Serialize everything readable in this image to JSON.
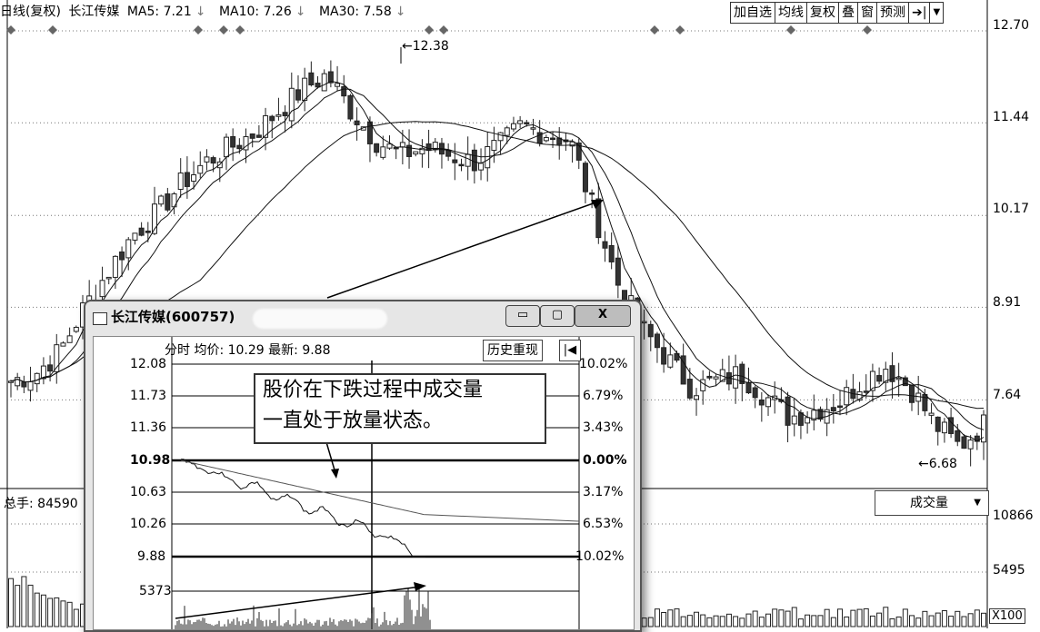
{
  "header": {
    "chart_type": "日线(复权)",
    "stock_name": "长江传媒",
    "ma5": "MA5: 7.21",
    "ma10": "MA10: 7.26",
    "ma30": "MA30: 7.58",
    "down_arrow": "↓"
  },
  "toolbar": {
    "add_watchlist": "加自选",
    "ma_line": "均线",
    "adjust": "复权",
    "overlay": "叠",
    "window": "窗",
    "forecast": "预测",
    "nav_icon": "➔|",
    "menu_icon": "▼"
  },
  "price_axis": [
    "12.70",
    "11.44",
    "10.17",
    "8.91",
    "7.64"
  ],
  "annotations": {
    "high": "12.38",
    "low": "6.68"
  },
  "volume": {
    "total_label": "总手: 84590",
    "indicator": "成交量",
    "axis": [
      "10866",
      "5495"
    ],
    "multiplier": "X100"
  },
  "popup": {
    "title": "长江传媒(600757)",
    "btn_min": "▭",
    "btn_max": "▢",
    "btn_close": "X",
    "minute_header": "分时 均价: 10.29 最新: 9.88",
    "history_button": "历史重现",
    "history_icon": "|◀",
    "price_levels": [
      "12.08",
      "11.73",
      "11.36",
      "10.98",
      "10.63",
      "10.26",
      "9.88"
    ],
    "pct_levels": [
      "10.02%",
      "6.79%",
      "3.43%",
      "0.00%",
      "3.17%",
      "6.53%",
      "10.02%"
    ],
    "volume_level": "5373",
    "note_line1": "股价在下跌过程中成交量",
    "note_line2": "一直处于放量状态。"
  },
  "chart_data": {
    "type": "candlestick",
    "title": "长江传媒 日线(复权)",
    "y_ticks": [
      12.7,
      11.44,
      10.17,
      8.91,
      7.64
    ],
    "ylim": [
      6.4,
      12.75
    ],
    "annotated_high": 12.38,
    "annotated_low": 6.68,
    "series": [
      {
        "name": "MA5",
        "last": 7.21
      },
      {
        "name": "MA10",
        "last": 7.26
      },
      {
        "name": "MA30",
        "last": 7.58
      }
    ],
    "close_path": [
      7.9,
      8.0,
      8.3,
      8.9,
      9.4,
      9.9,
      10.2,
      10.6,
      10.9,
      11.1,
      11.3,
      11.6,
      11.9,
      12.1,
      11.6,
      11.2,
      11.0,
      11.1,
      11.0,
      10.9,
      11.1,
      11.4,
      11.3,
      11.2,
      10.2,
      9.2,
      8.6,
      8.2,
      7.8,
      7.9,
      8.0,
      7.7,
      7.4,
      7.5,
      7.6,
      7.9,
      8.1,
      7.8,
      7.3,
      7.0,
      7.3
    ],
    "grid": true
  }
}
